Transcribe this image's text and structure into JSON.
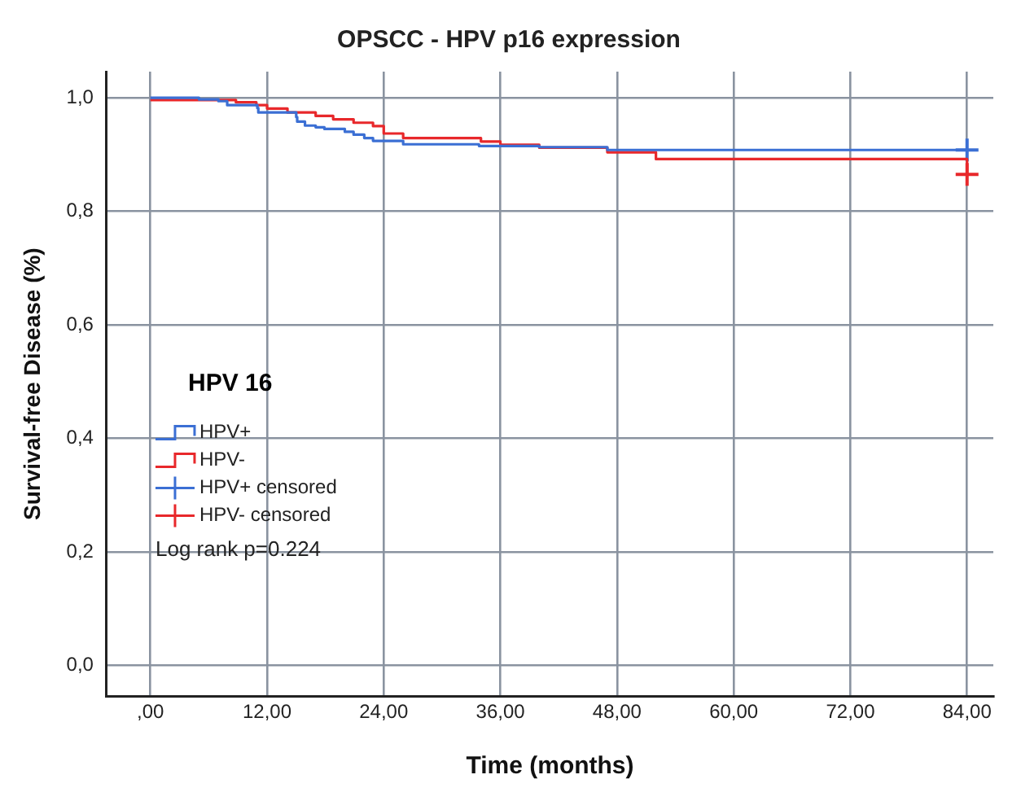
{
  "chart_data": {
    "type": "step",
    "title": "OPSCC - HPV p16 expression",
    "xlabel": "Time (months)",
    "ylabel": "Survival-free Disease (%)",
    "legend_title": "HPV 16",
    "legend": "left",
    "grid": true,
    "annotations": [
      "Log rank p=0.224"
    ],
    "xlim": [
      -4.5,
      86.7
    ],
    "ylim": [
      -0.054,
      1.046
    ],
    "xticks": [
      {
        "value": 0,
        "label": ",00"
      },
      {
        "value": 12,
        "label": "12,00"
      },
      {
        "value": 24,
        "label": "24,00"
      },
      {
        "value": 36,
        "label": "36,00"
      },
      {
        "value": 48,
        "label": "48,00"
      },
      {
        "value": 60,
        "label": "60,00"
      },
      {
        "value": 72,
        "label": "72,00"
      },
      {
        "value": 84,
        "label": "84,00"
      }
    ],
    "yticks": [
      {
        "value": 0,
        "label": "0,0"
      },
      {
        "value": 0.2,
        "label": "0,2"
      },
      {
        "value": 0.4,
        "label": "0,4"
      },
      {
        "value": 0.6,
        "label": "0,6"
      },
      {
        "value": 0.8,
        "label": "0,8"
      },
      {
        "value": 1,
        "label": "1,0"
      }
    ],
    "series": [
      {
        "name": "HPV+",
        "marker": "none",
        "color": "#3b6fd4",
        "x": [
          0,
          5,
          7,
          7.9,
          11,
          11.1,
          15,
          15.1,
          15.9,
          17,
          17.9,
          20,
          20.9,
          22,
          22.9,
          26,
          33.8,
          40,
          47,
          84
        ],
        "values": [
          1.0,
          0.997,
          0.994,
          0.987,
          0.982,
          0.974,
          0.966,
          0.958,
          0.951,
          0.948,
          0.945,
          0.94,
          0.935,
          0.929,
          0.924,
          0.918,
          0.915,
          0.913,
          0.908,
          0.908
        ]
      },
      {
        "name": "HPV-",
        "marker": "none",
        "color": "#e8282b",
        "x": [
          0,
          8.8,
          10.9,
          12,
          14.1,
          17,
          18.8,
          20.9,
          22.9,
          24,
          26,
          34,
          36,
          40,
          47,
          52,
          84
        ],
        "values": [
          0.996,
          0.992,
          0.987,
          0.981,
          0.974,
          0.968,
          0.962,
          0.956,
          0.95,
          0.937,
          0.929,
          0.923,
          0.917,
          0.912,
          0.904,
          0.892,
          0.865
        ]
      },
      {
        "name": "HPV+ censored",
        "type": "scatter",
        "marker": "cross",
        "color": "#3b6fd4",
        "x": [
          84
        ],
        "values": [
          0.908
        ]
      },
      {
        "name": "HPV- censored",
        "type": "scatter",
        "marker": "cross",
        "color": "#e8282b",
        "x": [
          84
        ],
        "values": [
          0.865
        ]
      }
    ]
  }
}
